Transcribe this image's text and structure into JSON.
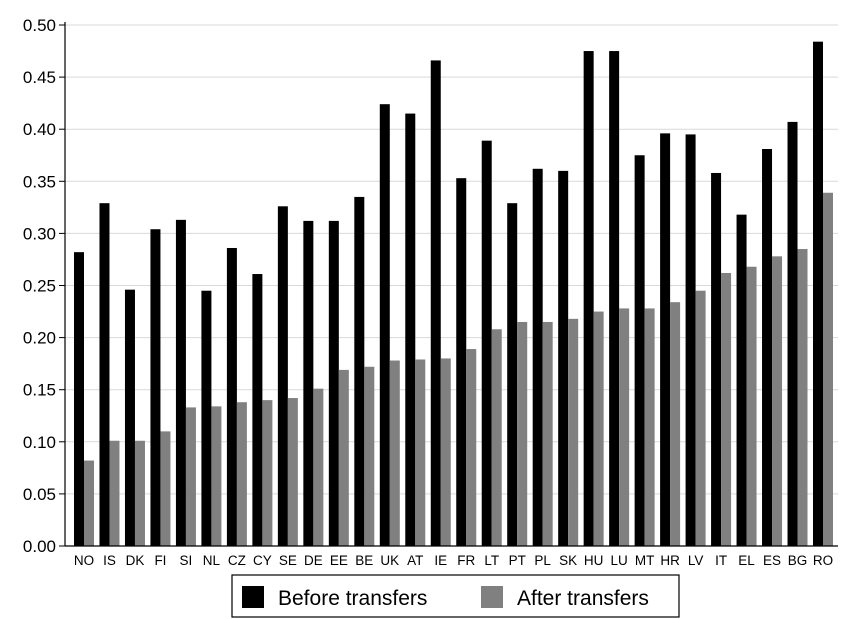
{
  "chart_data": {
    "type": "bar",
    "title": "",
    "xlabel": "",
    "ylabel": "",
    "ylim": [
      0,
      0.5
    ],
    "yticks": [
      "0.00",
      "0.05",
      "0.10",
      "0.15",
      "0.20",
      "0.25",
      "0.30",
      "0.35",
      "0.40",
      "0.45",
      "0.50"
    ],
    "grid": true,
    "legend_position": "bottom",
    "categories": [
      "NO",
      "IS",
      "DK",
      "FI",
      "SI",
      "NL",
      "CZ",
      "CY",
      "SE",
      "DE",
      "EE",
      "BE",
      "UK",
      "AT",
      "IE",
      "FR",
      "LT",
      "PT",
      "PL",
      "SK",
      "HU",
      "LU",
      "MT",
      "HR",
      "LV",
      "IT",
      "EL",
      "ES",
      "BG",
      "RO"
    ],
    "series": [
      {
        "name": "Before transfers",
        "color": "#000000",
        "values": [
          0.282,
          0.329,
          0.246,
          0.304,
          0.313,
          0.245,
          0.286,
          0.261,
          0.326,
          0.312,
          0.312,
          0.335,
          0.424,
          0.415,
          0.466,
          0.353,
          0.389,
          0.329,
          0.362,
          0.36,
          0.475,
          0.475,
          0.375,
          0.396,
          0.395,
          0.358,
          0.318,
          0.381,
          0.407,
          0.484
        ]
      },
      {
        "name": "After transfers",
        "color": "#808080",
        "values": [
          0.082,
          0.101,
          0.101,
          0.11,
          0.133,
          0.134,
          0.138,
          0.14,
          0.142,
          0.151,
          0.169,
          0.172,
          0.178,
          0.179,
          0.18,
          0.189,
          0.208,
          0.215,
          0.215,
          0.218,
          0.225,
          0.228,
          0.228,
          0.234,
          0.245,
          0.262,
          0.268,
          0.278,
          0.285,
          0.339
        ]
      }
    ]
  }
}
